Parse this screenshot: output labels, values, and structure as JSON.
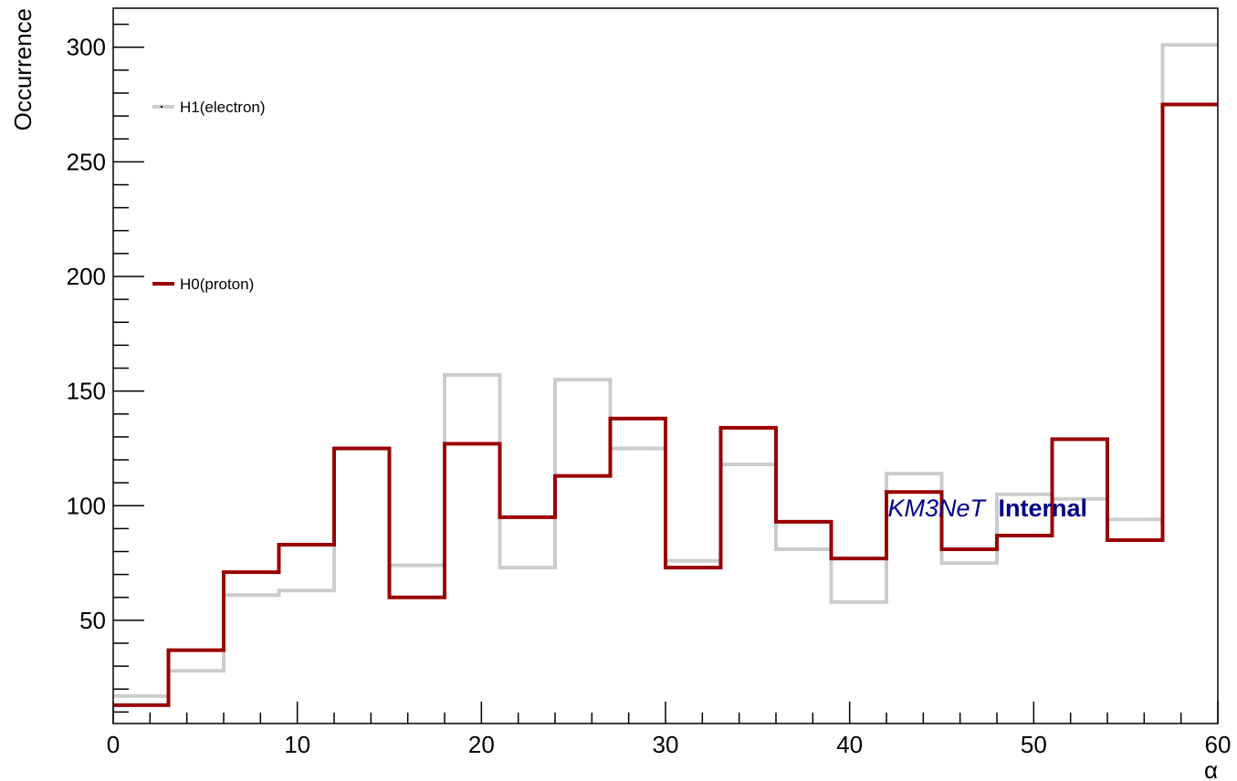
{
  "chart_data": {
    "type": "line",
    "step": true,
    "xlabel": "α",
    "ylabel": "Occurrence",
    "xlim": [
      0,
      60
    ],
    "ylim": [
      5,
      317
    ],
    "xticks": [
      0,
      10,
      20,
      30,
      40,
      50,
      60
    ],
    "yticks": [
      50,
      100,
      150,
      200,
      250,
      300
    ],
    "bin_edges": [
      0,
      3,
      6,
      9,
      12,
      15,
      18,
      21,
      24,
      27,
      30,
      33,
      36,
      39,
      42,
      45,
      48,
      51,
      54,
      57,
      60
    ],
    "legend_position": "top-left",
    "grid": false,
    "series": [
      {
        "name": "H1(electron)",
        "color": "#cccccc",
        "values": [
          17,
          28,
          61,
          63,
          125,
          74,
          157,
          73,
          155,
          125,
          76,
          118,
          81,
          58,
          114,
          75,
          105,
          103,
          94,
          301
        ]
      },
      {
        "name": "H0(proton)",
        "color": "#990000",
        "values": [
          13,
          37,
          71,
          83,
          125,
          60,
          127,
          95,
          113,
          138,
          73,
          134,
          93,
          77,
          106,
          81,
          87,
          129,
          85,
          275
        ]
      }
    ],
    "watermark": {
      "italic": "KM3NeT",
      "bold": "Internal",
      "color": "#00008b"
    }
  }
}
